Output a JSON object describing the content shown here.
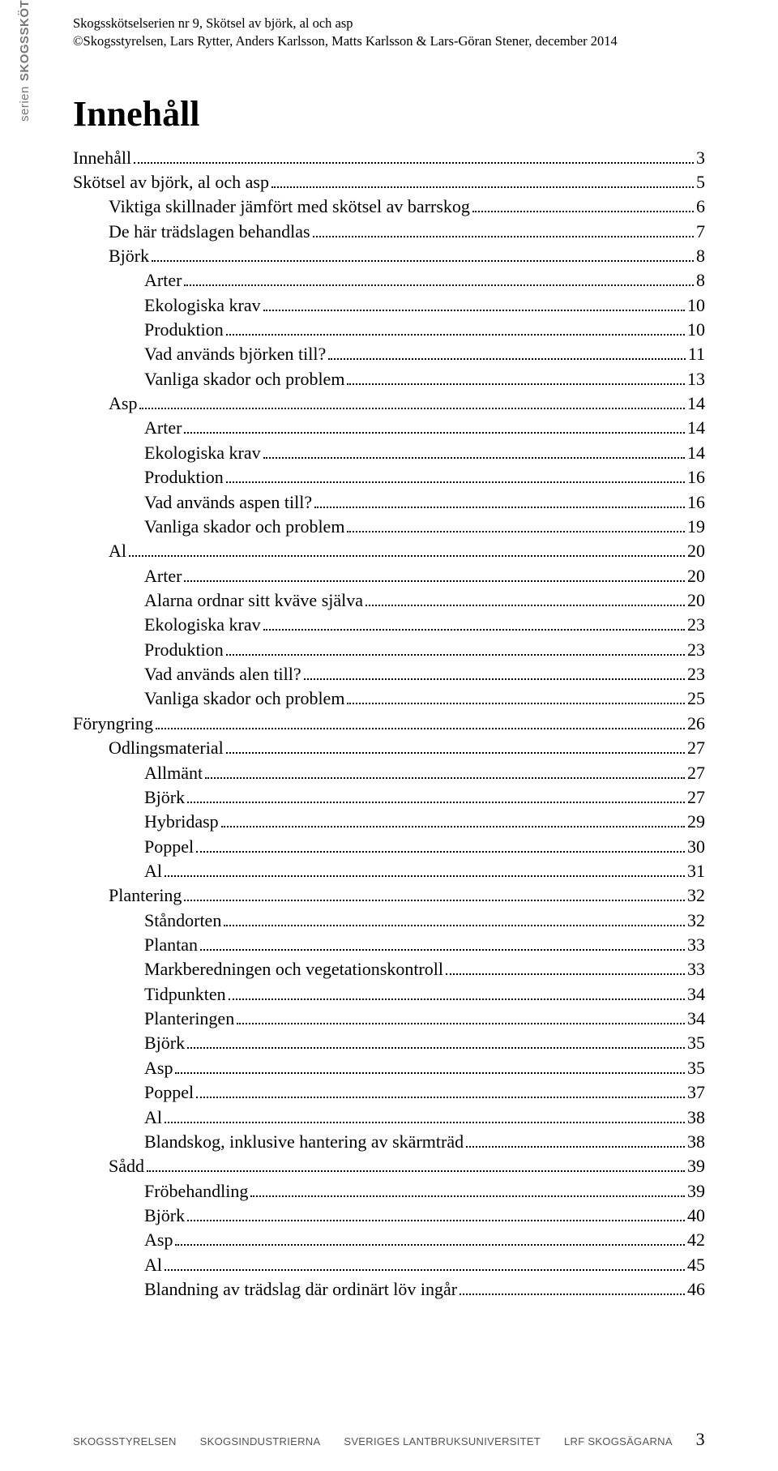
{
  "header": {
    "line1": "Skogsskötselserien nr 9, Skötsel av björk, al och asp",
    "line2": "©Skogsstyrelsen, Lars Rytter, Anders Karlsson, Matts Karlsson & Lars-Göran Stener, december 2014"
  },
  "sideLabel": {
    "bold": "SKOGSSKÖTSEL",
    "rest": "serien"
  },
  "title": "Innehåll",
  "toc": [
    {
      "label": "Innehåll",
      "page": "3",
      "indent": 0
    },
    {
      "label": "Skötsel av björk, al och asp",
      "page": "5",
      "indent": 0
    },
    {
      "label": "Viktiga skillnader jämfört  med skötsel av barrskog",
      "page": "6",
      "indent": 1
    },
    {
      "label": "De här trädslagen behandlas",
      "page": "7",
      "indent": 1
    },
    {
      "label": "Björk",
      "page": "8",
      "indent": 1
    },
    {
      "label": "Arter",
      "page": "8",
      "indent": 2
    },
    {
      "label": "Ekologiska krav",
      "page": "10",
      "indent": 2
    },
    {
      "label": "Produktion",
      "page": "10",
      "indent": 2
    },
    {
      "label": "Vad används björken till?",
      "page": "11",
      "indent": 2
    },
    {
      "label": "Vanliga skador och problem",
      "page": "13",
      "indent": 2
    },
    {
      "label": "Asp",
      "page": "14",
      "indent": 1
    },
    {
      "label": "Arter",
      "page": "14",
      "indent": 2
    },
    {
      "label": "Ekologiska krav",
      "page": "14",
      "indent": 2
    },
    {
      "label": "Produktion",
      "page": "16",
      "indent": 2
    },
    {
      "label": "Vad används aspen till?",
      "page": "16",
      "indent": 2
    },
    {
      "label": "Vanliga skador och problem",
      "page": "19",
      "indent": 2
    },
    {
      "label": "Al",
      "page": "20",
      "indent": 1
    },
    {
      "label": "Arter",
      "page": "20",
      "indent": 2
    },
    {
      "label": "Alarna ordnar sitt kväve själva",
      "page": "20",
      "indent": 2
    },
    {
      "label": "Ekologiska krav",
      "page": "23",
      "indent": 2
    },
    {
      "label": "Produktion",
      "page": "23",
      "indent": 2
    },
    {
      "label": "Vad används alen till?",
      "page": "23",
      "indent": 2
    },
    {
      "label": "Vanliga skador och problem",
      "page": "25",
      "indent": 2
    },
    {
      "label": "Föryngring",
      "page": "26",
      "indent": 0
    },
    {
      "label": "Odlingsmaterial",
      "page": "27",
      "indent": 1
    },
    {
      "label": "Allmänt",
      "page": "27",
      "indent": 2
    },
    {
      "label": "Björk",
      "page": "27",
      "indent": 2
    },
    {
      "label": "Hybridasp",
      "page": "29",
      "indent": 2
    },
    {
      "label": "Poppel",
      "page": "30",
      "indent": 2
    },
    {
      "label": "Al",
      "page": "31",
      "indent": 2
    },
    {
      "label": "Plantering",
      "page": "32",
      "indent": 1
    },
    {
      "label": "Ståndorten",
      "page": "32",
      "indent": 2
    },
    {
      "label": "Plantan",
      "page": "33",
      "indent": 2
    },
    {
      "label": "Markberedningen och vegetationskontroll",
      "page": "33",
      "indent": 2
    },
    {
      "label": "Tidpunkten",
      "page": "34",
      "indent": 2
    },
    {
      "label": "Planteringen",
      "page": "34",
      "indent": 2
    },
    {
      "label": "Björk",
      "page": "35",
      "indent": 2
    },
    {
      "label": "Asp",
      "page": "35",
      "indent": 2
    },
    {
      "label": "Poppel",
      "page": "37",
      "indent": 2
    },
    {
      "label": "Al",
      "page": "38",
      "indent": 2
    },
    {
      "label": "Blandskog, inklusive hantering av skärmträd",
      "page": "38",
      "indent": 2
    },
    {
      "label": "Sådd",
      "page": "39",
      "indent": 1
    },
    {
      "label": "Fröbehandling",
      "page": "39",
      "indent": 2
    },
    {
      "label": "Björk",
      "page": "40",
      "indent": 2
    },
    {
      "label": "Asp",
      "page": "42",
      "indent": 2
    },
    {
      "label": "Al",
      "page": "45",
      "indent": 2
    },
    {
      "label": "Blandning av trädslag där ordinärt löv ingår",
      "page": "46",
      "indent": 2
    }
  ],
  "lastPageOverride": "46",
  "footer": {
    "org1": "SKOGSSTYRELSEN",
    "org2": "SKOGSINDUSTRIERNA",
    "org3": "SVERIGES LANTBRUKSUNIVERSITET",
    "org4": "LRF SKOGSÄGARNA",
    "pageNumber": "3"
  }
}
